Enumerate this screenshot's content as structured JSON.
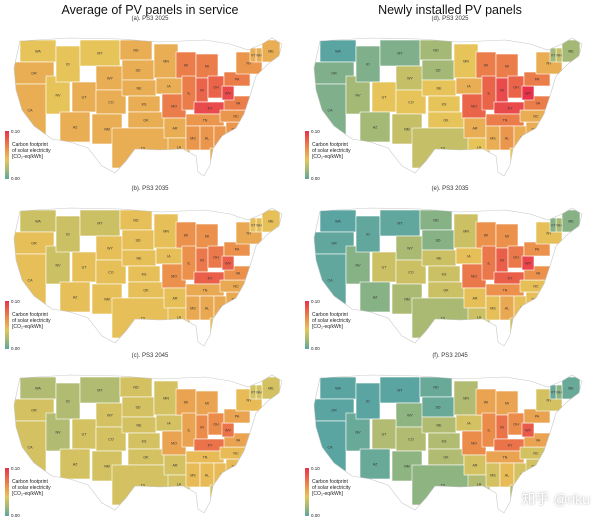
{
  "columns": [
    {
      "title": "Average of PV panels in service"
    },
    {
      "title": "Newly installed PV panels"
    }
  ],
  "legend": {
    "top": "0.10",
    "bottom": "0.00",
    "label_lines": [
      "Carbon footprint",
      "of solar electricity",
      "[CO₂-eq/kWh]"
    ]
  },
  "panels": [
    {
      "id": "a",
      "title": "(a). PS3 2025",
      "scheme": "avg",
      "level": 0
    },
    {
      "id": "d",
      "title": "(d). PS3 2025",
      "scheme": "new",
      "level": 0
    },
    {
      "id": "b",
      "title": "(b). PS3 2035",
      "scheme": "avg",
      "level": 1
    },
    {
      "id": "e",
      "title": "(e). PS3 2035",
      "scheme": "new",
      "level": 1
    },
    {
      "id": "c",
      "title": "(c). PS3 2045",
      "scheme": "avg",
      "level": 2
    },
    {
      "id": "f",
      "title": "(f). PS3 2045",
      "scheme": "new",
      "level": 2
    }
  ],
  "states": [
    {
      "abbr": "WA",
      "avg": 0.04,
      "new": 0.0
    },
    {
      "abbr": "OR",
      "avg": 0.05,
      "new": 0.01
    },
    {
      "abbr": "CA",
      "avg": 0.05,
      "new": 0.01
    },
    {
      "abbr": "NV",
      "avg": 0.04,
      "new": 0.02
    },
    {
      "abbr": "ID",
      "avg": 0.04,
      "new": 0.01
    },
    {
      "abbr": "MT",
      "avg": 0.04,
      "new": 0.01
    },
    {
      "abbr": "WY",
      "avg": 0.05,
      "new": 0.03
    },
    {
      "abbr": "UT",
      "avg": 0.05,
      "new": 0.04
    },
    {
      "abbr": "AZ",
      "avg": 0.05,
      "new": 0.02
    },
    {
      "abbr": "CO",
      "avg": 0.05,
      "new": 0.04
    },
    {
      "abbr": "NM",
      "avg": 0.05,
      "new": 0.03
    },
    {
      "abbr": "ND",
      "avg": 0.05,
      "new": 0.02
    },
    {
      "abbr": "SD",
      "avg": 0.05,
      "new": 0.02
    },
    {
      "abbr": "NE",
      "avg": 0.05,
      "new": 0.04
    },
    {
      "abbr": "KS",
      "avg": 0.05,
      "new": 0.04
    },
    {
      "abbr": "OK",
      "avg": 0.05,
      "new": 0.04
    },
    {
      "abbr": "TX",
      "avg": 0.05,
      "new": 0.03
    },
    {
      "abbr": "MN",
      "avg": 0.05,
      "new": 0.04
    },
    {
      "abbr": "IA",
      "avg": 0.05,
      "new": 0.05
    },
    {
      "abbr": "MO",
      "avg": 0.07,
      "new": 0.08
    },
    {
      "abbr": "AR",
      "avg": 0.05,
      "new": 0.05
    },
    {
      "abbr": "LA",
      "avg": 0.05,
      "new": 0.04
    },
    {
      "abbr": "WI",
      "avg": 0.07,
      "new": 0.07
    },
    {
      "abbr": "IL",
      "avg": 0.07,
      "new": 0.08
    },
    {
      "abbr": "MI",
      "avg": 0.07,
      "new": 0.07
    },
    {
      "abbr": "IN",
      "avg": 0.08,
      "new": 0.09
    },
    {
      "abbr": "OH",
      "avg": 0.08,
      "new": 0.08
    },
    {
      "abbr": "KY",
      "avg": 0.09,
      "new": 0.09
    },
    {
      "abbr": "TN",
      "avg": 0.06,
      "new": 0.07
    },
    {
      "abbr": "MS",
      "avg": 0.06,
      "new": 0.05
    },
    {
      "abbr": "AL",
      "avg": 0.06,
      "new": 0.06
    },
    {
      "abbr": "GA",
      "avg": 0.06,
      "new": 0.05
    },
    {
      "abbr": "FL",
      "avg": 0.05,
      "new": 0.04
    },
    {
      "abbr": "SC",
      "avg": 0.06,
      "new": 0.05
    },
    {
      "abbr": "NC",
      "avg": 0.06,
      "new": 0.05
    },
    {
      "abbr": "VA",
      "avg": 0.07,
      "new": 0.07
    },
    {
      "abbr": "WV",
      "avg": 0.09,
      "new": 0.1
    },
    {
      "abbr": "PA",
      "avg": 0.07,
      "new": 0.07
    },
    {
      "abbr": "NY",
      "avg": 0.06,
      "new": 0.05
    },
    {
      "abbr": "ME",
      "avg": 0.05,
      "new": 0.02
    },
    {
      "abbr": "NH",
      "avg": 0.05,
      "new": 0.03
    },
    {
      "abbr": "VT",
      "avg": 0.05,
      "new": 0.02
    }
  ],
  "watermark": "知乎 @riku"
}
